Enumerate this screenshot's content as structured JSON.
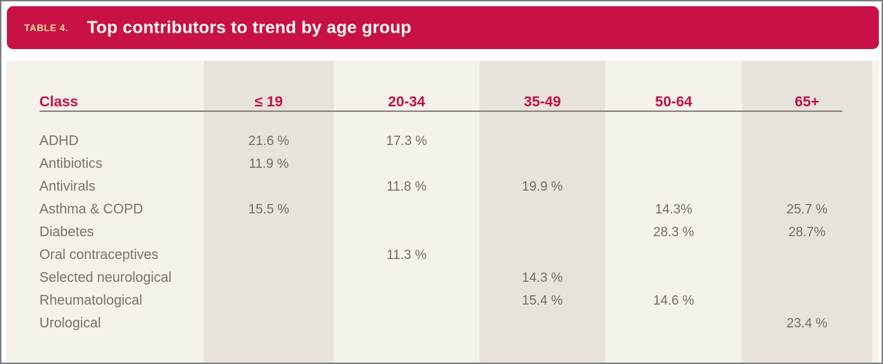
{
  "header": {
    "tag": "TABLE 4.",
    "title": "Top contributors to trend by age group",
    "bar_color": "#C81144",
    "tag_color": "#F2DFA4",
    "title_color": "#FFFDF4"
  },
  "table": {
    "class_header": "Class",
    "columns": [
      {
        "label": "≤ 19",
        "shaded": true
      },
      {
        "label": "20-34",
        "shaded": false
      },
      {
        "label": "35-49",
        "shaded": true
      },
      {
        "label": "50-64",
        "shaded": false
      },
      {
        "label": "65+",
        "shaded": true
      }
    ],
    "rows": [
      {
        "class": "ADHD",
        "values": [
          "21.6 %",
          "17.3 %",
          "",
          "",
          ""
        ]
      },
      {
        "class": "Antibiotics",
        "values": [
          "11.9 %",
          "",
          "",
          "",
          ""
        ]
      },
      {
        "class": "Antivirals",
        "values": [
          "",
          "11.8 %",
          "19.9 %",
          "",
          ""
        ]
      },
      {
        "class": "Asthma & COPD",
        "values": [
          "15.5 %",
          "",
          "",
          "14.3%",
          "25.7 %"
        ]
      },
      {
        "class": "Diabetes",
        "values": [
          "",
          "",
          "",
          "28.3 %",
          "28.7%"
        ]
      },
      {
        "class": "Oral contraceptives",
        "values": [
          "",
          "11.3 %",
          "",
          "",
          ""
        ]
      },
      {
        "class": "Selected neurological",
        "values": [
          "",
          "",
          "14.3 %",
          "",
          ""
        ]
      },
      {
        "class": "Rheumatological",
        "values": [
          "",
          "",
          "15.4 %",
          "14.6 %",
          ""
        ]
      },
      {
        "class": "Urological",
        "values": [
          "",
          "",
          "",
          "",
          "23.4 %"
        ]
      }
    ],
    "colors": {
      "panel_background": "#F5F1EB",
      "band_background": "#E7E2DC",
      "header_text": "#C31144",
      "row_text": "#7A7269",
      "value_text": "#726D67",
      "rule": "#8A7F75",
      "window_border": "#7b7b7b"
    }
  },
  "chart_data": {
    "type": "table",
    "title": "Top contributors to trend by age group",
    "columns": [
      "Class",
      "≤ 19",
      "20-34",
      "35-49",
      "50-64",
      "65+"
    ],
    "rows": [
      [
        "ADHD",
        "21.6 %",
        "17.3 %",
        "",
        "",
        ""
      ],
      [
        "Antibiotics",
        "11.9 %",
        "",
        "",
        "",
        ""
      ],
      [
        "Antivirals",
        "",
        "11.8 %",
        "19.9 %",
        "",
        ""
      ],
      [
        "Asthma & COPD",
        "15.5 %",
        "",
        "",
        "14.3%",
        "25.7 %"
      ],
      [
        "Diabetes",
        "",
        "",
        "",
        "28.3 %",
        "28.7%"
      ],
      [
        "Oral contraceptives",
        "",
        "11.3 %",
        "",
        "",
        ""
      ],
      [
        "Selected neurological",
        "",
        "",
        "14.3 %",
        "",
        ""
      ],
      [
        "Rheumatological",
        "",
        "",
        "15.4 %",
        "14.6 %",
        ""
      ],
      [
        "Urological",
        "",
        "",
        "",
        "",
        "23.4 %"
      ]
    ]
  }
}
